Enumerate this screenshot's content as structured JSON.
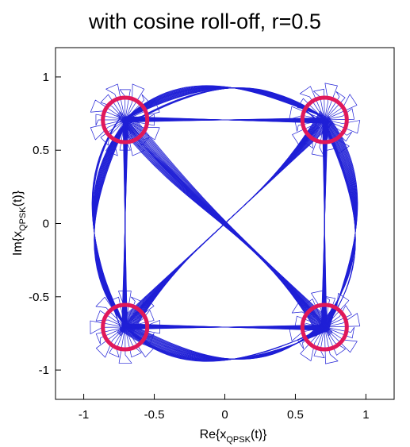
{
  "chart_data": {
    "type": "scatter",
    "title": "with cosine roll-off, r=0.5",
    "xlabel": {
      "prefix": "Re{x",
      "subscript": "QPSK",
      "suffix": "(t)}"
    },
    "ylabel": {
      "prefix": "Im{x",
      "subscript": "QPSK",
      "suffix": "(t)}"
    },
    "xlim": [
      -1.2,
      1.2
    ],
    "ylim": [
      -1.2,
      1.2
    ],
    "xticks": [
      "-1",
      "-0.5",
      "0",
      "0.5",
      "1"
    ],
    "xtick_values": [
      -1,
      -0.5,
      0,
      0.5,
      1
    ],
    "yticks": [
      "1",
      "0.5",
      "0",
      "-0.5",
      "-1"
    ],
    "ytick_values": [
      1,
      0.5,
      0,
      -0.5,
      -1
    ],
    "grid": false,
    "series": [
      {
        "values": "eye-diagram style QPSK trajectory",
        "constellation_points": [
          {
            "x": -0.707,
            "y": 0.707
          },
          {
            "x": 0.707,
            "y": 0.707
          },
          {
            "x": -0.707,
            "y": -0.707
          },
          {
            "x": 0.707,
            "y": -0.707
          }
        ]
      }
    ],
    "highlight_circles": [
      {
        "x": -0.707,
        "y": 0.707
      },
      {
        "x": 0.707,
        "y": 0.707
      },
      {
        "x": -0.707,
        "y": -0.707
      },
      {
        "x": 0.707,
        "y": -0.707
      }
    ],
    "colors": {
      "trace": "#1f1fd6",
      "highlight": "#e0185a",
      "axis": "#000000"
    }
  }
}
